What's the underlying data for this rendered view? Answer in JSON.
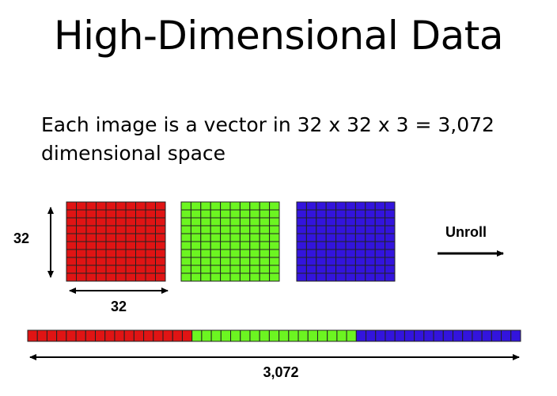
{
  "slide": {
    "title": "High-Dimensional Data",
    "body_line1": "Each image is a vector in 32 x 32 x 3 = 3,072",
    "body_line2": "dimensional space"
  },
  "diagram": {
    "height_label": "32",
    "width_label": "32",
    "unroll_label": "Unroll",
    "vector_length_label": "3,072",
    "grid_rows": 10,
    "grid_cols": 10,
    "strip_cells_per_channel": 17,
    "channels": [
      {
        "name": "red",
        "color": "#e01414"
      },
      {
        "name": "green",
        "color": "#6cf521"
      },
      {
        "name": "blue",
        "color": "#3314dd"
      }
    ],
    "grid_line_color": "#222222"
  }
}
